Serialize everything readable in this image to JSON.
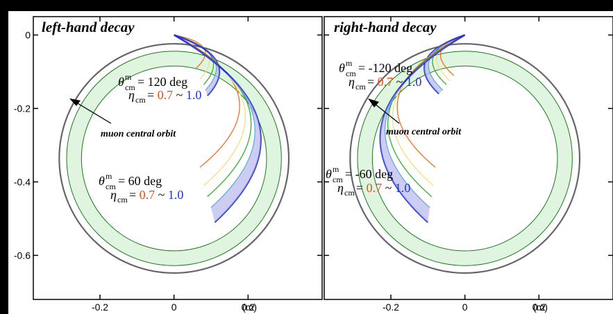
{
  "colors": {
    "eta07": "#f07020",
    "eta08": "#f0e080",
    "eta09": "#30b030",
    "eta095": "#30a0d0",
    "eta10": "#2233cc",
    "ring_fill": "#dff5df",
    "ring_edge": "#1a7a1a",
    "outer_circle": "#666666"
  },
  "chart_data": [
    {
      "type": "line",
      "title": "left-hand decay",
      "xlim": [
        -0.38,
        0.4
      ],
      "ylim": [
        -0.72,
        0.05
      ],
      "xticks": [
        "-0.2",
        "0",
        "0.2"
      ],
      "yticks": [
        "0",
        "-0.2",
        "-0.4",
        "-0.6"
      ],
      "unit_label": "(m)",
      "outer_circle": {
        "cx": 0,
        "cy": -0.336,
        "r": 0.31
      },
      "central_orbit": {
        "cx": 0,
        "cy": -0.336,
        "r_outer": 0.29,
        "r_inner": 0.25
      },
      "orbit_label": "muon central orbit",
      "annotations": [
        {
          "theta_label": "θ",
          "theta_sub": "cm",
          "theta_sup": "m",
          "theta_value": "= 120 deg",
          "eta_label": "η",
          "eta_sub": "cm",
          "eta_eq": " = ",
          "eta_low": "0.7",
          "eta_sep": " ~ ",
          "eta_high": "1.0"
        },
        {
          "theta_label": "θ",
          "theta_sub": "cm",
          "theta_sup": "m",
          "theta_value": "= 60 deg",
          "eta_label": "η",
          "eta_sub": "cm",
          "eta_eq": " = ",
          "eta_low": "0.7",
          "eta_sep": " ~ ",
          "eta_high": "1.0"
        }
      ]
    },
    {
      "type": "line",
      "title": "right-hand decay",
      "xlim": [
        -0.38,
        0.4
      ],
      "ylim": [
        -0.72,
        0.05
      ],
      "xticks": [
        "-0.2",
        "0",
        "0.2"
      ],
      "yticks": [],
      "unit_label": "(m)",
      "outer_circle": {
        "cx": 0,
        "cy": -0.336,
        "r": 0.31
      },
      "central_orbit": {
        "cx": 0,
        "cy": -0.336,
        "r_outer": 0.29,
        "r_inner": 0.25
      },
      "orbit_label": "muon central orbit",
      "annotations": [
        {
          "theta_label": "θ",
          "theta_sub": "cm",
          "theta_sup": "m",
          "theta_value": "= -120 deg",
          "eta_label": "η",
          "eta_sub": "cm",
          "eta_eq": " = ",
          "eta_low": "0.7",
          "eta_sep": " ~ ",
          "eta_high": "1.0"
        },
        {
          "theta_label": "θ",
          "theta_sub": "cm",
          "theta_sup": "m",
          "theta_value": "= -60 deg",
          "eta_label": "η",
          "eta_sub": "cm",
          "eta_eq": " = ",
          "eta_low": "0.7",
          "eta_sep": " ~ ",
          "eta_high": "1.0"
        }
      ]
    }
  ]
}
